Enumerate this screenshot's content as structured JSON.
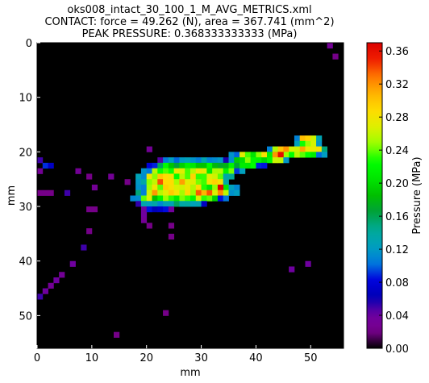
{
  "titles": {
    "line1": "oks008_intact_30_100_1_M_AVG_METRICS.xml",
    "line2": "CONTACT: force = 49.262 (N), area = 367.741 (mm^2)",
    "line3": "PEAK PRESSURE: 0.368333333333 (MPa)"
  },
  "chart_data": {
    "type": "heatmap",
    "title": "oks008_intact_30_100_1_M_AVG_METRICS.xml\nCONTACT: force = 49.262 (N), area = 367.741 (mm^2)\nPEAK PRESSURE: 0.368333333333 (MPa)",
    "xlabel": "mm",
    "ylabel": "mm",
    "xlim": [
      0,
      56
    ],
    "ylim": [
      56,
      0
    ],
    "xticks": [
      "0",
      "10",
      "20",
      "30",
      "40",
      "50"
    ],
    "yticks": [
      "0",
      "10",
      "20",
      "30",
      "40",
      "50"
    ],
    "colorbar": {
      "label": "Pressure (MPa)",
      "range": [
        0.0,
        0.37
      ],
      "ticks": [
        "0.00",
        "0.04",
        "0.08",
        "0.12",
        "0.16",
        "0.20",
        "0.24",
        "0.28",
        "0.32",
        "0.36"
      ],
      "colormap": "nipy_spectral"
    },
    "regions_mpa": [
      {
        "rows": [
          17,
          18
        ],
        "cols": [
          47,
          51
        ],
        "value": 0.28
      },
      {
        "rows": [
          19,
          19
        ],
        "cols": [
          42,
          52
        ],
        "value": 0.3
      },
      {
        "rows": [
          20,
          20
        ],
        "cols": [
          35,
          52
        ],
        "value": 0.26
      },
      {
        "rows": [
          20,
          20
        ],
        "cols": [
          43,
          44
        ],
        "value": 0.36
      },
      {
        "rows": [
          21,
          21
        ],
        "cols": [
          22,
          34
        ],
        "value": 0.12
      },
      {
        "rows": [
          21,
          21
        ],
        "cols": [
          35,
          45
        ],
        "value": 0.24
      },
      {
        "rows": [
          22,
          22
        ],
        "cols": [
          20,
          41
        ],
        "value": 0.2
      },
      {
        "rows": [
          23,
          23
        ],
        "cols": [
          19,
          37
        ],
        "value": 0.26
      },
      {
        "rows": [
          24,
          24
        ],
        "cols": [
          18,
          35
        ],
        "value": 0.28
      },
      {
        "rows": [
          25,
          25
        ],
        "cols": [
          18,
          34
        ],
        "value": 0.3
      },
      {
        "rows": [
          26,
          26
        ],
        "cols": [
          18,
          36
        ],
        "value": 0.26
      },
      {
        "rows": [
          26,
          26
        ],
        "cols": [
          33,
          33
        ],
        "value": 0.37
      },
      {
        "rows": [
          27,
          27
        ],
        "cols": [
          18,
          36
        ],
        "value": 0.3
      },
      {
        "rows": [
          28,
          28
        ],
        "cols": [
          17,
          34
        ],
        "value": 0.24
      },
      {
        "rows": [
          29,
          29
        ],
        "cols": [
          18,
          30
        ],
        "value": 0.14
      },
      {
        "rows": [
          30,
          30
        ],
        "cols": [
          19,
          24
        ],
        "value": 0.08
      }
    ],
    "sparse_cells_mpa": [
      {
        "x": 53,
        "y": 0,
        "v": 0.03
      },
      {
        "x": 54,
        "y": 2,
        "v": 0.02
      },
      {
        "x": 20,
        "y": 19,
        "v": 0.03
      },
      {
        "x": 0,
        "y": 21,
        "v": 0.05
      },
      {
        "x": 1,
        "y": 22,
        "v": 0.09
      },
      {
        "x": 2,
        "y": 22,
        "v": 0.07
      },
      {
        "x": 0,
        "y": 23,
        "v": 0.03
      },
      {
        "x": 7,
        "y": 23,
        "v": 0.03
      },
      {
        "x": 9,
        "y": 24,
        "v": 0.02
      },
      {
        "x": 13,
        "y": 24,
        "v": 0.03
      },
      {
        "x": 16,
        "y": 25,
        "v": 0.02
      },
      {
        "x": 10,
        "y": 26,
        "v": 0.03
      },
      {
        "x": 5,
        "y": 27,
        "v": 0.05
      },
      {
        "x": 0,
        "y": 27,
        "v": 0.02
      },
      {
        "x": 1,
        "y": 27,
        "v": 0.02
      },
      {
        "x": 2,
        "y": 27,
        "v": 0.02
      },
      {
        "x": 9,
        "y": 30,
        "v": 0.02
      },
      {
        "x": 10,
        "y": 30,
        "v": 0.02
      },
      {
        "x": 19,
        "y": 31,
        "v": 0.04
      },
      {
        "x": 19,
        "y": 32,
        "v": 0.03
      },
      {
        "x": 20,
        "y": 33,
        "v": 0.02
      },
      {
        "x": 9,
        "y": 34,
        "v": 0.02
      },
      {
        "x": 24,
        "y": 33,
        "v": 0.02
      },
      {
        "x": 24,
        "y": 35,
        "v": 0.02
      },
      {
        "x": 8,
        "y": 37,
        "v": 0.05
      },
      {
        "x": 6,
        "y": 40,
        "v": 0.04
      },
      {
        "x": 49,
        "y": 40,
        "v": 0.04
      },
      {
        "x": 46,
        "y": 41,
        "v": 0.04
      },
      {
        "x": 4,
        "y": 42,
        "v": 0.03
      },
      {
        "x": 3,
        "y": 43,
        "v": 0.04
      },
      {
        "x": 2,
        "y": 44,
        "v": 0.03
      },
      {
        "x": 1,
        "y": 45,
        "v": 0.04
      },
      {
        "x": 0,
        "y": 46,
        "v": 0.05
      },
      {
        "x": 23,
        "y": 49,
        "v": 0.02
      },
      {
        "x": 14,
        "y": 53,
        "v": 0.02
      }
    ]
  }
}
